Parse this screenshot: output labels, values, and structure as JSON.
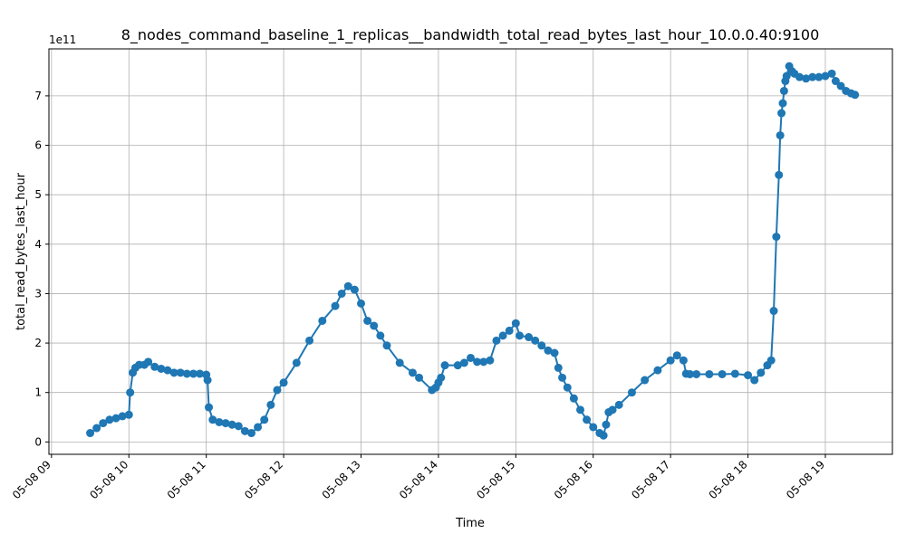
{
  "chart_data": {
    "type": "line",
    "title": "8_nodes_command_baseline_1_replicas__bandwidth_total_read_bytes_last_hour_10.0.0.40:9100",
    "xlabel": "Time",
    "ylabel": "total_read_bytes_last_hour",
    "y_offset_label": "1e11",
    "x_tick_labels": [
      "05-08 09",
      "05-08 10",
      "05-08 11",
      "05-08 12",
      "05-08 13",
      "05-08 14",
      "05-08 15",
      "05-08 16",
      "05-08 17",
      "05-08 18",
      "05-08 19"
    ],
    "y_tick_labels": [
      "0",
      "1",
      "2",
      "3",
      "4",
      "5",
      "6",
      "7"
    ],
    "ylim": [
      -25000000000.0,
      795000000000.0
    ],
    "xlim": [
      "2024-05-08 08:58",
      "2024-05-08 19:52"
    ],
    "grid": true,
    "line_color": "#1f77b4",
    "marker": "circle",
    "series": [
      {
        "x": [
          "2024-05-08 09:30",
          "2024-05-08 09:35",
          "2024-05-08 09:40",
          "2024-05-08 09:45",
          "2024-05-08 09:50",
          "2024-05-08 09:55",
          "2024-05-08 10:00",
          "2024-05-08 10:01",
          "2024-05-08 10:03",
          "2024-05-08 10:05",
          "2024-05-08 10:08",
          "2024-05-08 10:12",
          "2024-05-08 10:15",
          "2024-05-08 10:20",
          "2024-05-08 10:25",
          "2024-05-08 10:30",
          "2024-05-08 10:35",
          "2024-05-08 10:40",
          "2024-05-08 10:45",
          "2024-05-08 10:50",
          "2024-05-08 10:55",
          "2024-05-08 11:00",
          "2024-05-08 11:01",
          "2024-05-08 11:02",
          "2024-05-08 11:05",
          "2024-05-08 11:10",
          "2024-05-08 11:15",
          "2024-05-08 11:20",
          "2024-05-08 11:25",
          "2024-05-08 11:30",
          "2024-05-08 11:35",
          "2024-05-08 11:40",
          "2024-05-08 11:45",
          "2024-05-08 11:50",
          "2024-05-08 11:55",
          "2024-05-08 12:00",
          "2024-05-08 12:10",
          "2024-05-08 12:20",
          "2024-05-08 12:30",
          "2024-05-08 12:40",
          "2024-05-08 12:45",
          "2024-05-08 12:50",
          "2024-05-08 12:55",
          "2024-05-08 13:00",
          "2024-05-08 13:05",
          "2024-05-08 13:10",
          "2024-05-08 13:15",
          "2024-05-08 13:20",
          "2024-05-08 13:30",
          "2024-05-08 13:40",
          "2024-05-08 13:45",
          "2024-05-08 13:55",
          "2024-05-08 13:58",
          "2024-05-08 14:00",
          "2024-05-08 14:02",
          "2024-05-08 14:05",
          "2024-05-08 14:15",
          "2024-05-08 14:20",
          "2024-05-08 14:25",
          "2024-05-08 14:30",
          "2024-05-08 14:35",
          "2024-05-08 14:40",
          "2024-05-08 14:45",
          "2024-05-08 14:50",
          "2024-05-08 14:55",
          "2024-05-08 15:00",
          "2024-05-08 15:03",
          "2024-05-08 15:10",
          "2024-05-08 15:15",
          "2024-05-08 15:20",
          "2024-05-08 15:25",
          "2024-05-08 15:30",
          "2024-05-08 15:33",
          "2024-05-08 15:36",
          "2024-05-08 15:40",
          "2024-05-08 15:45",
          "2024-05-08 15:50",
          "2024-05-08 15:55",
          "2024-05-08 16:00",
          "2024-05-08 16:05",
          "2024-05-08 16:08",
          "2024-05-08 16:10",
          "2024-05-08 16:12",
          "2024-05-08 16:15",
          "2024-05-08 16:20",
          "2024-05-08 16:30",
          "2024-05-08 16:40",
          "2024-05-08 16:50",
          "2024-05-08 17:00",
          "2024-05-08 17:05",
          "2024-05-08 17:10",
          "2024-05-08 17:12",
          "2024-05-08 17:15",
          "2024-05-08 17:20",
          "2024-05-08 17:30",
          "2024-05-08 17:40",
          "2024-05-08 17:50",
          "2024-05-08 18:00",
          "2024-05-08 18:05",
          "2024-05-08 18:10",
          "2024-05-08 18:15",
          "2024-05-08 18:18",
          "2024-05-08 18:20",
          "2024-05-08 18:22",
          "2024-05-08 18:24",
          "2024-05-08 18:25",
          "2024-05-08 18:26",
          "2024-05-08 18:27",
          "2024-05-08 18:28",
          "2024-05-08 18:29",
          "2024-05-08 18:30",
          "2024-05-08 18:32",
          "2024-05-08 18:34",
          "2024-05-08 18:36",
          "2024-05-08 18:40",
          "2024-05-08 18:45",
          "2024-05-08 18:50",
          "2024-05-08 18:55",
          "2024-05-08 19:00",
          "2024-05-08 19:05",
          "2024-05-08 19:08",
          "2024-05-08 19:12",
          "2024-05-08 19:16",
          "2024-05-08 19:20",
          "2024-05-08 19:23"
        ],
        "y": [
          18000000000.0,
          28000000000.0,
          38000000000.0,
          45000000000.0,
          48000000000.0,
          52000000000.0,
          55000000000.0,
          100000000000.0,
          140000000000.0,
          150000000000.0,
          156000000000.0,
          156000000000.0,
          162000000000.0,
          152000000000.0,
          148000000000.0,
          145000000000.0,
          140000000000.0,
          140000000000.0,
          138000000000.0,
          138000000000.0,
          138000000000.0,
          136000000000.0,
          125000000000.0,
          70000000000.0,
          45000000000.0,
          40000000000.0,
          38000000000.0,
          35000000000.0,
          32000000000.0,
          22000000000.0,
          18000000000.0,
          30000000000.0,
          45000000000.0,
          75000000000.0,
          105000000000.0,
          120000000000.0,
          160000000000.0,
          205000000000.0,
          245000000000.0,
          275000000000.0,
          300000000000.0,
          315000000000.0,
          308000000000.0,
          280000000000.0,
          245000000000.0,
          235000000000.0,
          215000000000.0,
          195000000000.0,
          160000000000.0,
          140000000000.0,
          130000000000.0,
          105000000000.0,
          110000000000.0,
          120000000000.0,
          130000000000.0,
          155000000000.0,
          155000000000.0,
          160000000000.0,
          170000000000.0,
          162000000000.0,
          162000000000.0,
          165000000000.0,
          205000000000.0,
          215000000000.0,
          225000000000.0,
          240000000000.0,
          215000000000.0,
          212000000000.0,
          205000000000.0,
          195000000000.0,
          185000000000.0,
          180000000000.0,
          150000000000.0,
          130000000000.0,
          110000000000.0,
          88000000000.0,
          65000000000.0,
          45000000000.0,
          30000000000.0,
          18000000000.0,
          13000000000.0,
          35000000000.0,
          60000000000.0,
          65000000000.0,
          75000000000.0,
          100000000000.0,
          125000000000.0,
          145000000000.0,
          165000000000.0,
          175000000000.0,
          165000000000.0,
          138000000000.0,
          137000000000.0,
          137000000000.0,
          137000000000.0,
          137000000000.0,
          138000000000.0,
          135000000000.0,
          125000000000.0,
          140000000000.0,
          155000000000.0,
          165000000000.0,
          265000000000.0,
          415000000000.0,
          540000000000.0,
          620000000000.0,
          665000000000.0,
          685000000000.0,
          710000000000.0,
          730000000000.0,
          740000000000.0,
          760000000000.0,
          750000000000.0,
          745000000000.0,
          738000000000.0,
          735000000000.0,
          738000000000.0,
          738000000000.0,
          740000000000.0,
          745000000000.0,
          730000000000.0,
          720000000000.0,
          710000000000.0,
          705000000000.0,
          702000000000.0
        ]
      }
    ]
  }
}
